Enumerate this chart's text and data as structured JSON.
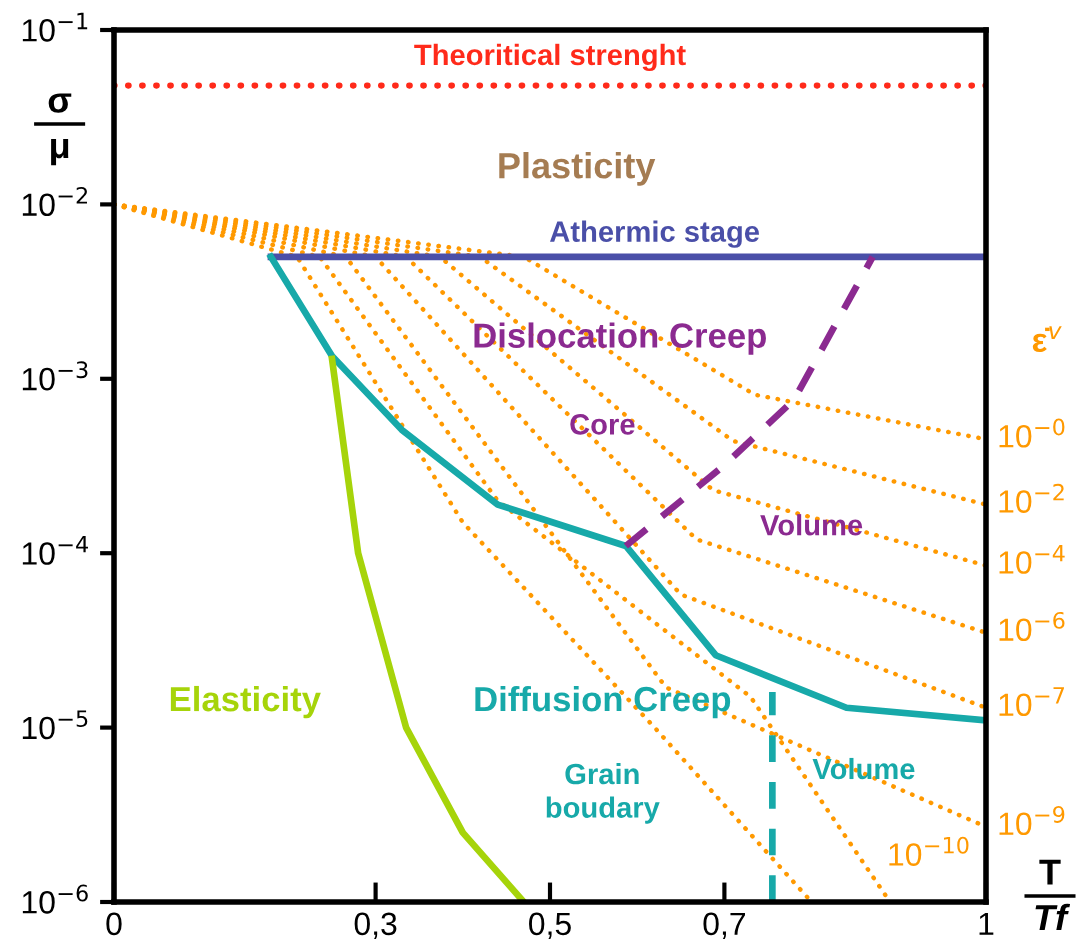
{
  "chart_data": {
    "type": "line",
    "xlabel": "T\nTf",
    "ylabel": "σ\nμ",
    "log": "y",
    "grid": false,
    "marker": "none",
    "xlim": [
      0,
      1
    ],
    "ylim": [
      1e-06,
      0.1
    ],
    "xticks": [
      0,
      {
        "value": 0.3,
        "label": "0,3"
      },
      {
        "value": 0.5,
        "label": "0,5"
      },
      {
        "value": 0.7,
        "label": "0,7"
      },
      1
    ],
    "yticks": [
      {
        "value": 1e-06,
        "label": "10$^{−6}$"
      },
      {
        "value": 1e-05,
        "label": "10$^{−5}$"
      },
      {
        "value": 0.0001,
        "label": "10$^{−4}$"
      },
      {
        "value": 0.001,
        "label": "10$^{−3}$"
      },
      {
        "value": 0.01,
        "label": "10$^{−2}$"
      },
      {
        "value": 0.1,
        "label": "10$^{−1}$"
      }
    ],
    "ref_lines": [
      {
        "axis": "y",
        "value": 0.048,
        "label": "Theoritical strenght",
        "color": "#ff2a1a",
        "line_style": "dotted"
      }
    ],
    "annotations": [
      "Plasticity",
      "Dislocation Creep",
      "Core",
      "Volume",
      "Elasticity",
      "Diffusion Creep",
      "Grain\nboudary",
      "Volume",
      "ε̇$^{v}$"
    ],
    "series": [
      {
        "name": "10$^{−0}$",
        "color": "#ff9900",
        "line_style": "dotted",
        "x": [
          0,
          0.47,
          0.735,
          1
        ],
        "values": [
          0.01,
          0.005,
          0.00081,
          0.00045
        ]
      },
      {
        "name": "10$^{−2}$",
        "color": "#ff9900",
        "line_style": "dotted",
        "x": [
          0,
          0.42,
          0.71,
          1
        ],
        "values": [
          0.01,
          0.005,
          0.00044,
          0.00019
        ]
      },
      {
        "name": "10$^{−4}$",
        "color": "#ff9900",
        "line_style": "dotted",
        "x": [
          0,
          0.374,
          0.687,
          1
        ],
        "values": [
          0.01,
          0.005,
          0.00023,
          8.5e-05
        ]
      },
      {
        "name": "10$^{−6}$",
        "color": "#ff9900",
        "line_style": "dotted",
        "x": [
          0,
          0.335,
          0.668,
          1
        ],
        "values": [
          0.01,
          0.005,
          0.00012,
          3.5e-05
        ]
      },
      {
        "name": "10$^{−7}$",
        "color": "#ff9900",
        "line_style": "dotted",
        "x": [
          0,
          0.3,
          0.65,
          1
        ],
        "values": [
          0.01,
          0.005,
          5.8e-05,
          1.3e-05
        ]
      },
      {
        "name": "10$^{−9}$",
        "color": "#ff9900",
        "line_style": "dotted",
        "x": [
          0,
          0.266,
          0.633,
          1
        ],
        "values": [
          0.01,
          0.005,
          1.7e-05,
          2.7e-06
        ]
      },
      {
        "name": "10$^{−10}$",
        "color": "#ff9900",
        "line_style": "dotted",
        "x": [
          0,
          0.236,
          0.44,
          0.73,
          0.89
        ],
        "values": [
          0.01,
          0.005,
          0.0002,
          1.5e-05,
          1e-06
        ]
      },
      {
        "color": "#ff9900",
        "line_style": "dotted",
        "x": [
          0,
          0.21,
          0.4,
          0.62,
          0.8
        ],
        "values": [
          0.01,
          0.005,
          0.00015,
          1e-05,
          1e-06
        ]
      },
      {
        "name": "Athermic stage",
        "color": "#4a4fa8",
        "line_style": "solid",
        "x": [
          0.18,
          1
        ],
        "values": [
          0.005,
          0.005
        ]
      },
      {
        "color": "#17a9a9",
        "line_style": "solid",
        "x": [
          0.18,
          0.25,
          0.33,
          0.44,
          0.587,
          0.69,
          0.84,
          1
        ],
        "values": [
          0.005,
          0.00135,
          0.00051,
          0.00019,
          0.00011,
          2.6e-05,
          1.3e-05,
          1.1e-05
        ]
      },
      {
        "color": "#a6d40a",
        "line_style": "solid",
        "x": [
          0.25,
          0.28,
          0.335,
          0.4,
          0.47
        ],
        "values": [
          0.0013,
          0.0001,
          1e-05,
          2.5e-06,
          1e-06
        ]
      },
      {
        "color": "#8b2a90",
        "line_style": "dashed",
        "x": [
          0.587,
          0.7,
          0.78,
          0.87
        ],
        "values": [
          0.00011,
          0.00032,
          0.00076,
          0.005
        ]
      },
      {
        "color": "#17a9a9",
        "line_style": "dashed",
        "x": [
          0.755,
          0.755
        ],
        "values": [
          1e-06,
          1.6e-05
        ]
      }
    ]
  }
}
